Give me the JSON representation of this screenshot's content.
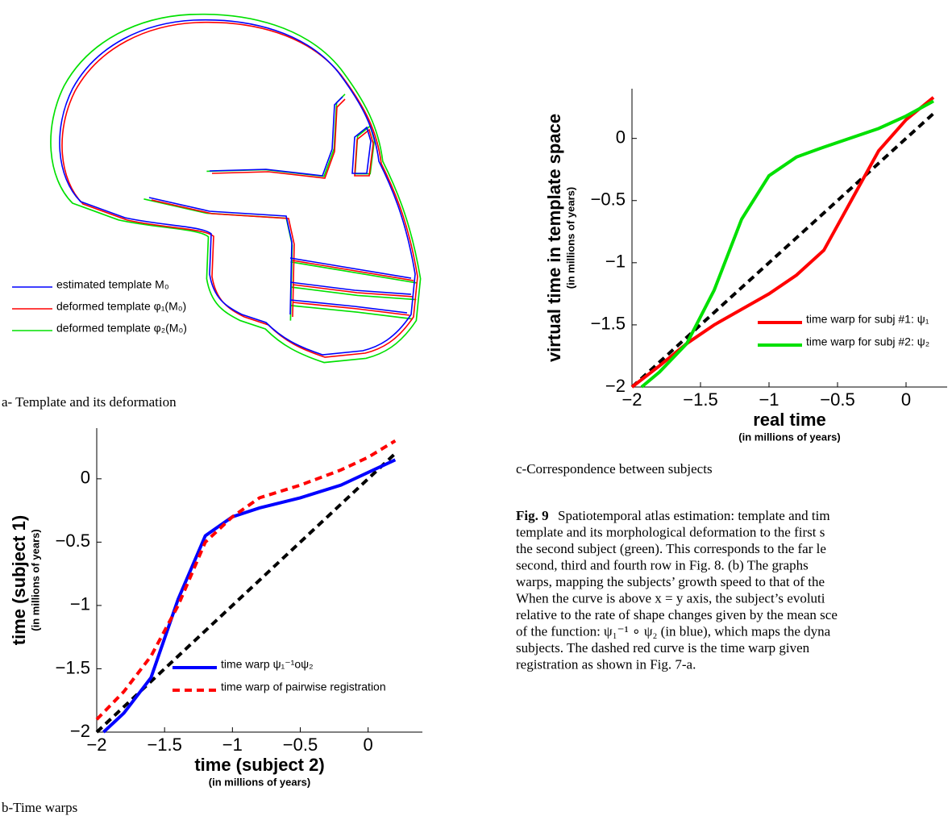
{
  "panel_a": {
    "legend": [
      "estimated template M₀",
      "deformed template φ₁(M₀)",
      "deformed template φ₂(M₀)"
    ],
    "legend_colors": [
      "#0000ff",
      "#ff0000",
      "#00e000"
    ],
    "caption": "a- Template and its deformation"
  },
  "chart_data": [
    {
      "type": "line",
      "caption": "b-Time warps",
      "xlabel": "time (subject 2)",
      "xlabel_sub": "(in millions of years)",
      "ylabel": "time (subject 1)",
      "ylabel_sub": "(in millions of years)",
      "xlim": [
        -2,
        0.4
      ],
      "ylim": [
        -2,
        0.4
      ],
      "xticks": [
        {
          "value": -2,
          "label": "−2"
        },
        {
          "value": -1.5,
          "label": "−1.5"
        },
        {
          "value": -1,
          "label": "−1"
        },
        {
          "value": -0.5,
          "label": "−0.5"
        },
        0
      ],
      "yticks": [
        {
          "value": -2,
          "label": "−2"
        },
        {
          "value": -1.5,
          "label": "−1.5"
        },
        {
          "value": -1,
          "label": "−1"
        },
        {
          "value": -0.5,
          "label": "−0.5"
        },
        0
      ],
      "legend": "lower right",
      "series": [
        {
          "name": "time warp ψ₁⁻¹οψ₂",
          "color": "#0000ff",
          "dash": false,
          "x": [
            -1.95,
            -1.8,
            -1.6,
            -1.4,
            -1.2,
            -1,
            -0.8,
            -0.5,
            -0.2,
            0,
            0.2
          ],
          "values": [
            -2,
            -1.85,
            -1.57,
            -0.95,
            -0.45,
            -0.3,
            -0.23,
            -0.15,
            -0.05,
            0.05,
            0.15
          ]
        },
        {
          "name": "time warp of pairwise registration",
          "color": "#ff0000",
          "dash": true,
          "x": [
            -2,
            -1.8,
            -1.6,
            -1.4,
            -1.2,
            -1,
            -0.8,
            -0.5,
            -0.2,
            0,
            0.2
          ],
          "values": [
            -1.9,
            -1.68,
            -1.4,
            -1.0,
            -0.5,
            -0.3,
            -0.15,
            -0.05,
            0.07,
            0.17,
            0.3
          ]
        }
      ],
      "reference_line": {
        "color": "#000000",
        "x": [
          -2,
          0.2
        ],
        "values": [
          -2,
          0.2
        ]
      }
    },
    {
      "type": "line",
      "caption": "c-Correspondence between subjects",
      "xlabel": "real time",
      "xlabel_sub": "(in millions of years)",
      "ylabel": "virtual time in template space",
      "ylabel_sub": "(in millions of years)",
      "xlim": [
        -2,
        0.3
      ],
      "ylim": [
        -2,
        0.4
      ],
      "xticks": [
        {
          "value": -2,
          "label": "−2"
        },
        {
          "value": -1.5,
          "label": "−1.5"
        },
        {
          "value": -1,
          "label": "−1"
        },
        {
          "value": -0.5,
          "label": "−0.5"
        },
        0
      ],
      "yticks": [
        {
          "value": -2,
          "label": "−2"
        },
        {
          "value": -1.5,
          "label": "−1.5"
        },
        {
          "value": -1,
          "label": "−1"
        },
        {
          "value": -0.5,
          "label": "−0.5"
        },
        0
      ],
      "legend": "lower right",
      "series": [
        {
          "name": "time warp for subj #1: ψ₁",
          "color": "#ff0000",
          "dash": false,
          "x": [
            -2,
            -1.8,
            -1.6,
            -1.4,
            -1,
            -0.8,
            -0.6,
            -0.4,
            -0.2,
            0,
            0.2
          ],
          "values": [
            -2,
            -1.83,
            -1.65,
            -1.5,
            -1.25,
            -1.1,
            -0.9,
            -0.5,
            -0.1,
            0.15,
            0.33
          ]
        },
        {
          "name": "time warp for subj #2: ψ₂",
          "color": "#00e000",
          "dash": false,
          "x": [
            -1.93,
            -1.8,
            -1.6,
            -1.4,
            -1.2,
            -1,
            -0.8,
            -0.6,
            -0.2,
            0,
            0.2
          ],
          "values": [
            -2,
            -1.88,
            -1.65,
            -1.22,
            -0.65,
            -0.3,
            -0.15,
            -0.07,
            0.08,
            0.18,
            0.3
          ]
        }
      ],
      "reference_line": {
        "color": "#000000",
        "x": [
          -2,
          0.2
        ],
        "values": [
          -2,
          0.2
        ]
      }
    }
  ],
  "figure_caption": {
    "label": "Fig. 9",
    "lines": [
      "Spatiotemporal atlas estimation: template and tim",
      "template and its morphological deformation to the first s",
      "the second subject (green). This corresponds to the far le",
      "second, third and fourth row in Fig. 8. (b) The graphs",
      "warps, mapping the subjects’ growth speed to that of the",
      "When the curve is above x = y axis, the subject’s evoluti",
      "relative to the rate of shape changes given by the mean sce",
      "of the function: ψ₁⁻¹ ∘ ψ₂ (in blue), which maps the dyna",
      "subjects. The dashed red curve is the time warp given",
      "registration as shown in Fig. 7-a."
    ]
  }
}
